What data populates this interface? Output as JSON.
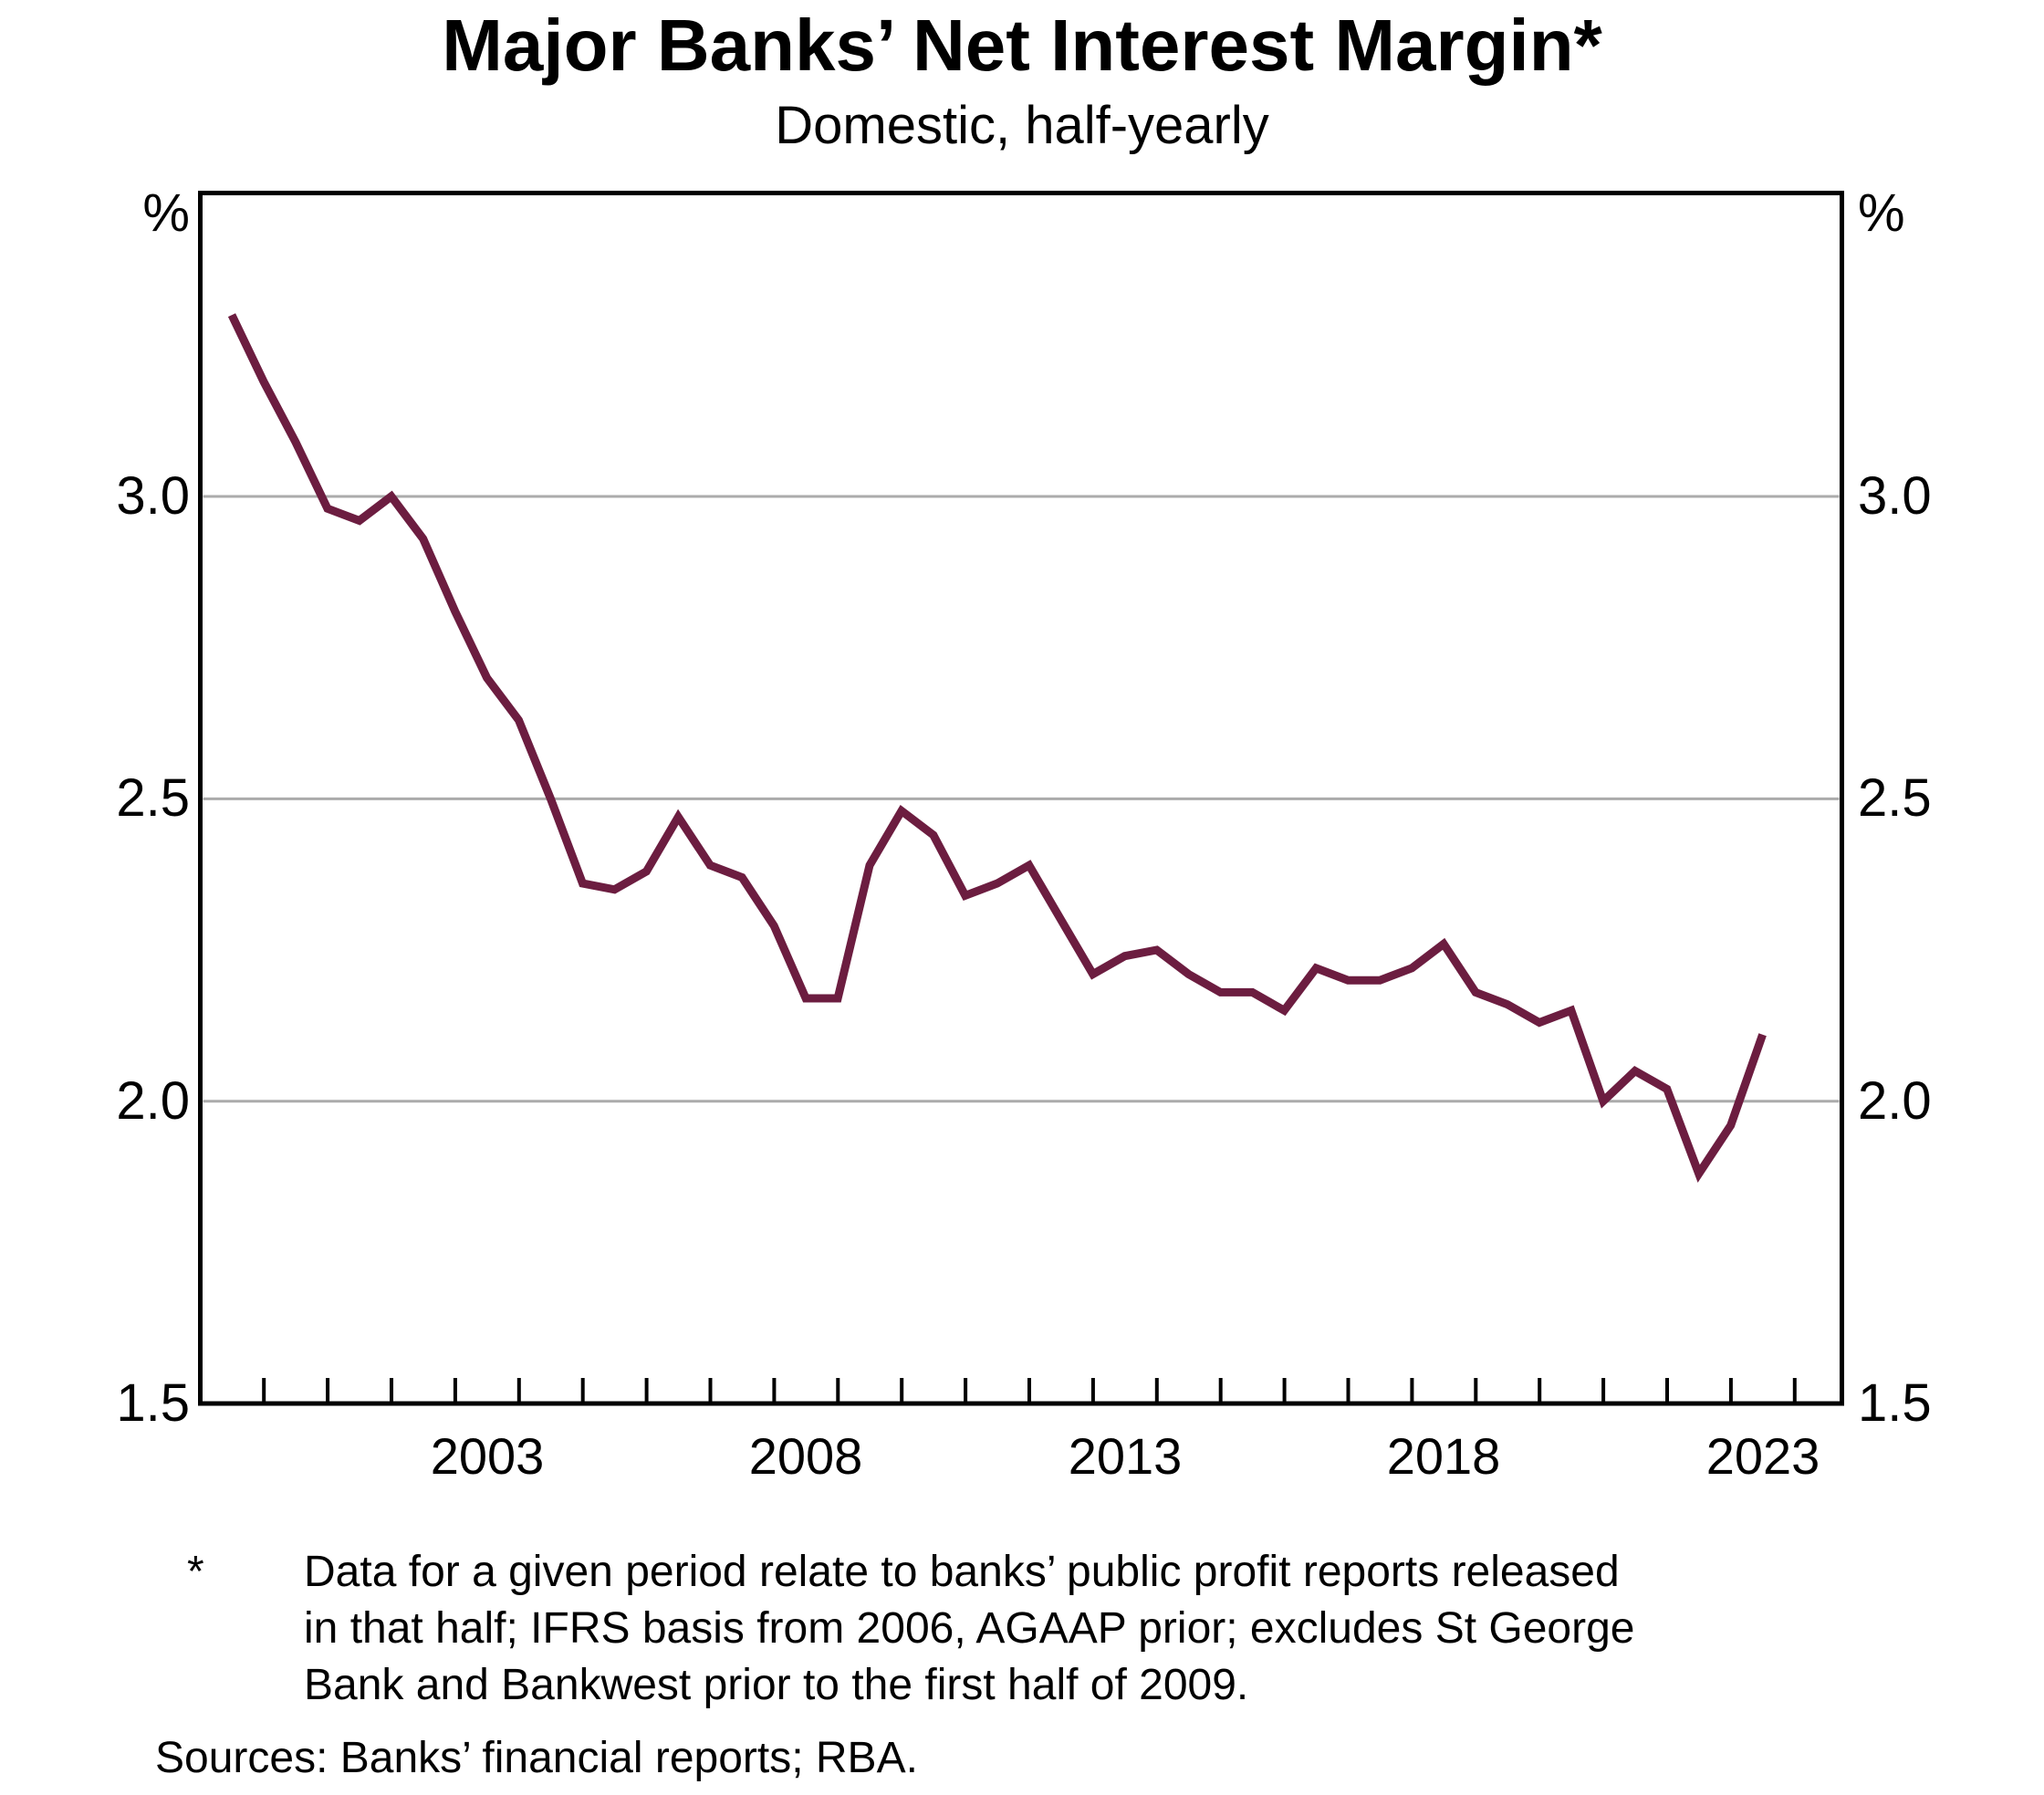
{
  "title": "Major Banks’ Net Interest Margin*",
  "subtitle": "Domestic, half-yearly",
  "axes": {
    "y_unit_left": "%",
    "y_unit_right": "%",
    "y_tick_labels": [
      "3.0",
      "2.5",
      "2.0",
      "1.5"
    ],
    "x_year_labels": [
      "2003",
      "2008",
      "2013",
      "2018",
      "2023"
    ]
  },
  "footnote": {
    "marker": "*",
    "lines": [
      "Data for a given period relate to banks’ public profit reports released",
      "in that half; IFRS basis from 2006, AGAAP prior; excludes St George",
      "Bank and Bankwest prior to the first half of 2009."
    ]
  },
  "sources": "Sources: Banks’ financial reports; RBA.",
  "chart_data": {
    "type": "line",
    "title": "Major Banks’ Net Interest Margin*",
    "subtitle": "Domestic, half-yearly",
    "ylabel": "%",
    "ylim": [
      1.5,
      3.5
    ],
    "y_gridlines": [
      2.0,
      2.5,
      3.0
    ],
    "grid_on": true,
    "x_axis_years": {
      "first_tick": 2000,
      "last_tick": 2024,
      "tick_interval": 1
    },
    "frequency": "half-yearly",
    "periods": [
      "1999 H2",
      "2000 H1",
      "2000 H2",
      "2001 H1",
      "2001 H2",
      "2002 H1",
      "2002 H2",
      "2003 H1",
      "2003 H2",
      "2004 H1",
      "2004 H2",
      "2005 H1",
      "2005 H2",
      "2006 H1",
      "2006 H2",
      "2007 H1",
      "2007 H2",
      "2008 H1",
      "2008 H2",
      "2009 H1",
      "2009 H2",
      "2010 H1",
      "2010 H2",
      "2011 H1",
      "2011 H2",
      "2012 H1",
      "2012 H2",
      "2013 H1",
      "2013 H2",
      "2014 H1",
      "2014 H2",
      "2015 H1",
      "2015 H2",
      "2016 H1",
      "2016 H2",
      "2017 H1",
      "2017 H2",
      "2018 H1",
      "2018 H2",
      "2019 H1",
      "2019 H2",
      "2020 H1",
      "2020 H2",
      "2021 H1",
      "2021 H2",
      "2022 H1",
      "2022 H2",
      "2023 H1",
      "2023 H2"
    ],
    "series": [
      {
        "name": "Major banks’ net interest margin (domestic)",
        "color": "#6C1D40",
        "values": [
          3.3,
          3.19,
          3.09,
          2.98,
          2.96,
          3.0,
          2.93,
          2.81,
          2.7,
          2.63,
          2.5,
          2.36,
          2.35,
          2.38,
          2.47,
          2.39,
          2.37,
          2.29,
          2.17,
          2.17,
          2.39,
          2.48,
          2.44,
          2.34,
          2.36,
          2.39,
          2.3,
          2.21,
          2.24,
          2.25,
          2.21,
          2.18,
          2.18,
          2.15,
          2.22,
          2.2,
          2.2,
          2.22,
          2.26,
          2.18,
          2.16,
          2.13,
          2.15,
          2.0,
          2.05,
          2.02,
          1.88,
          1.96,
          2.11
        ]
      }
    ],
    "colors": {
      "line": "#6C1D40",
      "gridline": "#ABABAB",
      "axis": "#000000"
    }
  }
}
